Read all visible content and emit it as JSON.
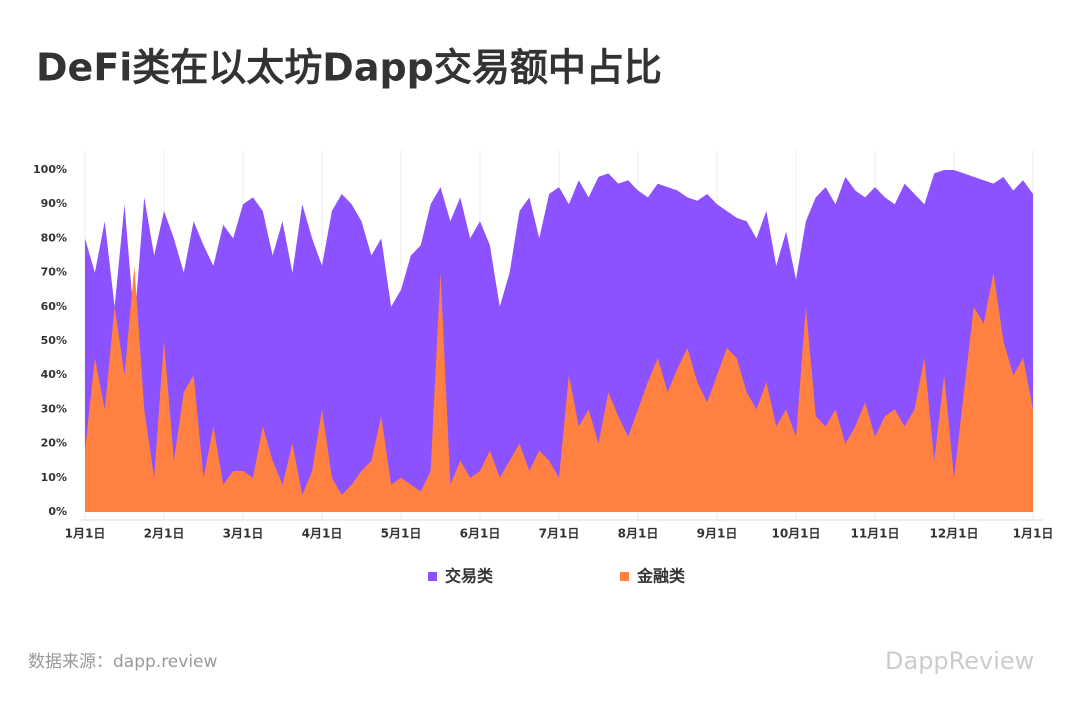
{
  "chart_data": {
    "type": "area",
    "title": "DeFi类在以太坊Dapp交易额中占比",
    "categories": [
      "1月1日",
      null,
      null,
      null,
      null,
      null,
      null,
      null,
      "2月1日",
      null,
      null,
      null,
      null,
      null,
      null,
      null,
      "3月1日",
      null,
      null,
      null,
      null,
      null,
      null,
      null,
      "4月1日",
      null,
      null,
      null,
      null,
      null,
      null,
      null,
      "5月1日",
      null,
      null,
      null,
      null,
      null,
      null,
      null,
      "6月1日",
      null,
      null,
      null,
      null,
      null,
      null,
      null,
      "7月1日",
      null,
      null,
      null,
      null,
      null,
      null,
      null,
      "8月1日",
      null,
      null,
      null,
      null,
      null,
      null,
      null,
      "9月1日",
      null,
      null,
      null,
      null,
      null,
      null,
      null,
      "10月1日",
      null,
      null,
      null,
      null,
      null,
      null,
      null,
      "11月1日",
      null,
      null,
      null,
      null,
      null,
      null,
      null,
      "12月1日",
      null,
      null,
      null,
      null,
      null,
      null,
      null,
      "1月1日"
    ],
    "series": [
      {
        "name": "交易类",
        "color": "#8c52ff",
        "values": [
          80,
          70,
          85,
          60,
          90,
          55,
          92,
          75,
          88,
          80,
          70,
          85,
          78,
          72,
          84,
          80,
          90,
          92,
          88,
          75,
          85,
          70,
          90,
          80,
          72,
          88,
          93,
          90,
          85,
          75,
          80,
          60,
          65,
          75,
          78,
          90,
          95,
          85,
          92,
          80,
          85,
          78,
          60,
          70,
          88,
          92,
          80,
          93,
          95,
          90,
          97,
          92,
          98,
          99,
          96,
          97,
          94,
          92,
          96,
          95,
          94,
          92,
          91,
          93,
          90,
          88,
          86,
          85,
          80,
          88,
          72,
          82,
          68,
          85,
          92,
          95,
          90,
          98,
          94,
          92,
          95,
          92,
          90,
          96,
          93,
          90,
          99,
          100,
          100,
          99,
          98,
          97,
          96,
          98,
          94,
          97,
          93
        ]
      },
      {
        "name": "金融类",
        "color": "#ff8040",
        "values": [
          18,
          45,
          30,
          60,
          40,
          72,
          30,
          10,
          50,
          15,
          35,
          40,
          10,
          25,
          8,
          12,
          12,
          10,
          25,
          15,
          8,
          20,
          5,
          12,
          30,
          10,
          5,
          8,
          12,
          15,
          28,
          8,
          10,
          8,
          6,
          12,
          70,
          8,
          15,
          10,
          12,
          18,
          10,
          15,
          20,
          12,
          18,
          15,
          10,
          40,
          25,
          30,
          20,
          35,
          28,
          22,
          30,
          38,
          45,
          35,
          42,
          48,
          38,
          32,
          40,
          48,
          45,
          35,
          30,
          38,
          25,
          30,
          22,
          60,
          28,
          25,
          30,
          20,
          25,
          32,
          22,
          28,
          30,
          25,
          30,
          45,
          15,
          40,
          10,
          35,
          60,
          55,
          70,
          50,
          40,
          45,
          30
        ]
      }
    ],
    "ylim": [
      0,
      100
    ],
    "yticks": [
      {
        "value": 0,
        "label": "0%"
      },
      {
        "value": 10,
        "label": "10%"
      },
      {
        "value": 20,
        "label": "20%"
      },
      {
        "value": 30,
        "label": "30%"
      },
      {
        "value": 40,
        "label": "40%"
      },
      {
        "value": 50,
        "label": "50%"
      },
      {
        "value": 60,
        "label": "60%"
      },
      {
        "value": 70,
        "label": "70%"
      },
      {
        "value": 80,
        "label": "80%"
      },
      {
        "value": 90,
        "label": "90%"
      },
      {
        "value": 100,
        "label": "100%"
      }
    ],
    "grid": true,
    "legend": "bottom",
    "source": "数据来源：dapp.review",
    "watermark": "DappReview"
  }
}
